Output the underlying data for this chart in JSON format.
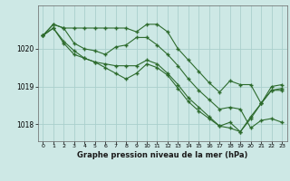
{
  "background_color": "#cde8e5",
  "grid_color": "#aacfcc",
  "line_color": "#2d6b2d",
  "marker_color": "#2d6b2d",
  "title": "Graphe pression niveau de la mer (hPa)",
  "xlim": [
    -0.5,
    23.5
  ],
  "ylim": [
    1017.55,
    1021.15
  ],
  "yticks": [
    1018,
    1019,
    1020
  ],
  "xticks": [
    0,
    1,
    2,
    3,
    4,
    5,
    6,
    7,
    8,
    9,
    10,
    11,
    12,
    13,
    14,
    15,
    16,
    17,
    18,
    19,
    20,
    21,
    22,
    23
  ],
  "series": [
    {
      "x": [
        0,
        1,
        2,
        3,
        4,
        5,
        6,
        7,
        8,
        9,
        10,
        11,
        12,
        13,
        14,
        15,
        16,
        17,
        18,
        19,
        20,
        21,
        22,
        23
      ],
      "y": [
        1020.35,
        1020.65,
        1020.55,
        1020.55,
        1020.55,
        1020.55,
        1020.55,
        1020.55,
        1020.55,
        1020.45,
        1020.65,
        1020.65,
        1020.45,
        1020.0,
        1019.7,
        1019.4,
        1019.1,
        1018.85,
        1019.15,
        1019.05,
        1019.05,
        1018.55,
        1019.0,
        1019.05
      ]
    },
    {
      "x": [
        0,
        1,
        2,
        3,
        4,
        5,
        6,
        7,
        8,
        9,
        10,
        11,
        12,
        13,
        14,
        15,
        16,
        17,
        18,
        19,
        20,
        21,
        22,
        23
      ],
      "y": [
        1020.35,
        1020.65,
        1020.55,
        1020.15,
        1020.0,
        1019.95,
        1019.85,
        1020.05,
        1020.1,
        1020.3,
        1020.3,
        1020.1,
        1019.85,
        1019.55,
        1019.2,
        1018.9,
        1018.65,
        1018.4,
        1018.45,
        1018.4,
        1017.9,
        1018.1,
        1018.15,
        1018.05
      ]
    },
    {
      "x": [
        0,
        1,
        2,
        3,
        4,
        5,
        6,
        7,
        8,
        9,
        10,
        11,
        12,
        13,
        14,
        15,
        16,
        17,
        18,
        19,
        20,
        21,
        22,
        23
      ],
      "y": [
        1020.35,
        1020.55,
        1020.2,
        1019.95,
        1019.75,
        1019.65,
        1019.6,
        1019.55,
        1019.55,
        1019.55,
        1019.7,
        1019.6,
        1019.35,
        1019.05,
        1018.7,
        1018.45,
        1018.2,
        1017.95,
        1018.05,
        1017.8,
        1018.2,
        1018.55,
        1018.9,
        1018.95
      ]
    },
    {
      "x": [
        0,
        1,
        2,
        3,
        4,
        5,
        6,
        7,
        8,
        9,
        10,
        11,
        12,
        13,
        14,
        15,
        16,
        17,
        18,
        19,
        20,
        21,
        22,
        23
      ],
      "y": [
        1020.35,
        1020.55,
        1020.15,
        1019.85,
        1019.75,
        1019.65,
        1019.5,
        1019.35,
        1019.2,
        1019.35,
        1019.6,
        1019.5,
        1019.3,
        1018.95,
        1018.6,
        1018.35,
        1018.15,
        1017.95,
        1017.9,
        1017.8,
        1018.15,
        1018.55,
        1018.9,
        1018.9
      ]
    }
  ]
}
